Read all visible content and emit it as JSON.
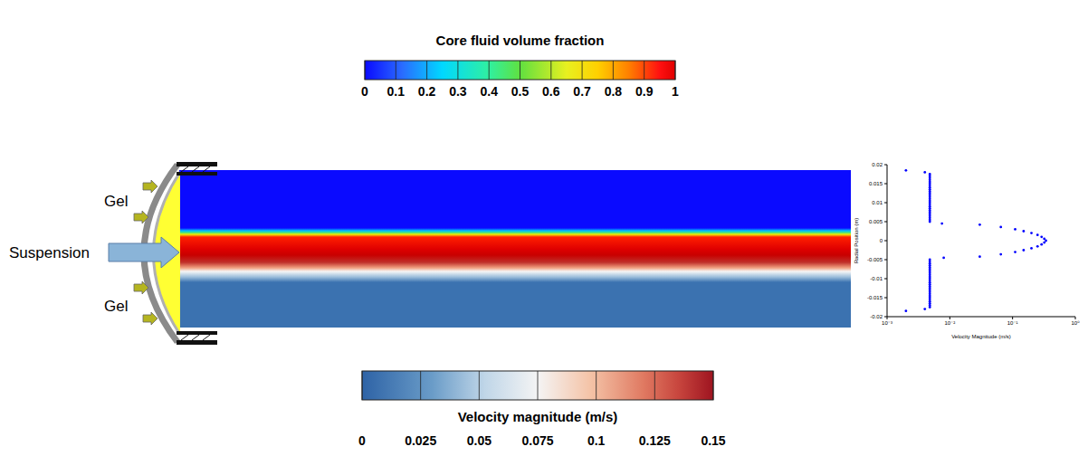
{
  "colorbars": [
    {
      "title": "Core fluid volume fraction",
      "range": [
        0,
        1
      ],
      "ticks": [
        0,
        0.1,
        0.2,
        0.3,
        0.4,
        0.5,
        0.6,
        0.7,
        0.8,
        0.9,
        1
      ]
    },
    {
      "title": "Velocity magnitude (m/s)",
      "range": [
        0,
        0.15
      ],
      "ticks": [
        0,
        0.025,
        0.05,
        0.075,
        0.1,
        0.125,
        0.15
      ]
    }
  ],
  "schematic": {
    "gel_top": "Gel",
    "inlet": "Suspension",
    "gel_bottom": "Gel"
  },
  "chart_data": {
    "type": "scatter",
    "x_label": "Velocity Magnitude (m/s)",
    "y_label": "Radial Position (m)",
    "log": "x",
    "xlim": [
      0.001,
      1
    ],
    "xticks": [
      {
        "value": 0.001,
        "label": "10⁻³"
      },
      {
        "value": 0.01,
        "label": "10⁻²"
      },
      {
        "value": 0.1,
        "label": "10⁻¹"
      },
      {
        "value": 1,
        "label": "10⁰"
      }
    ],
    "ylim": [
      -0.02,
      0.02
    ],
    "yticks": [
      -0.02,
      -0.015,
      -0.01,
      -0.005,
      0,
      0.005,
      0.01,
      0.015,
      0.02
    ],
    "color": "#0000ff",
    "marker": "circle",
    "x": [
      0.002,
      0.004,
      0.0048,
      0.0048,
      0.0048,
      0.0048,
      0.0048,
      0.0048,
      0.0048,
      0.0048,
      0.0048,
      0.0048,
      0.0048,
      0.0048,
      0.0048,
      0.0048,
      0.0048,
      0.0048,
      0.0048,
      0.0048,
      0.0048,
      0.0048,
      0.0048,
      0.0048,
      0.0048,
      0.0048,
      0.0048,
      0.0048,
      0.0075,
      0.03,
      0.065,
      0.11,
      0.15,
      0.2,
      0.25,
      0.29,
      0.32,
      0.34,
      0.32,
      0.29,
      0.25,
      0.2,
      0.15,
      0.11,
      0.065,
      0.03,
      0.008,
      0.0048,
      0.0048,
      0.0048,
      0.0048,
      0.0048,
      0.0048,
      0.0048,
      0.0048,
      0.0048,
      0.0048,
      0.0048,
      0.0048,
      0.0048,
      0.0048,
      0.0048,
      0.0048,
      0.0048,
      0.0048,
      0.0048,
      0.0048,
      0.0048,
      0.0048,
      0.0048,
      0.0048,
      0.0048,
      0.0048,
      0.004,
      0.002
    ],
    "values": [
      0.0185,
      0.018,
      0.0175,
      0.017,
      0.0165,
      0.016,
      0.0155,
      0.015,
      0.0145,
      0.014,
      0.0135,
      0.013,
      0.0125,
      0.012,
      0.0115,
      0.011,
      0.0105,
      0.01,
      0.0095,
      0.009,
      0.0085,
      0.008,
      0.0075,
      0.007,
      0.0065,
      0.006,
      0.0055,
      0.005,
      0.0045,
      0.0042,
      0.0036,
      0.003,
      0.0025,
      0.002,
      0.0015,
      0.001,
      0.0005,
      0,
      -0.0005,
      -0.001,
      -0.0015,
      -0.002,
      -0.0025,
      -0.003,
      -0.0036,
      -0.0042,
      -0.0045,
      -0.005,
      -0.0055,
      -0.006,
      -0.0065,
      -0.007,
      -0.0075,
      -0.008,
      -0.0085,
      -0.009,
      -0.0095,
      -0.01,
      -0.0105,
      -0.011,
      -0.0115,
      -0.012,
      -0.0125,
      -0.013,
      -0.0135,
      -0.014,
      -0.0145,
      -0.015,
      -0.0155,
      -0.016,
      -0.0165,
      -0.017,
      -0.0175,
      -0.018,
      -0.0185
    ]
  }
}
